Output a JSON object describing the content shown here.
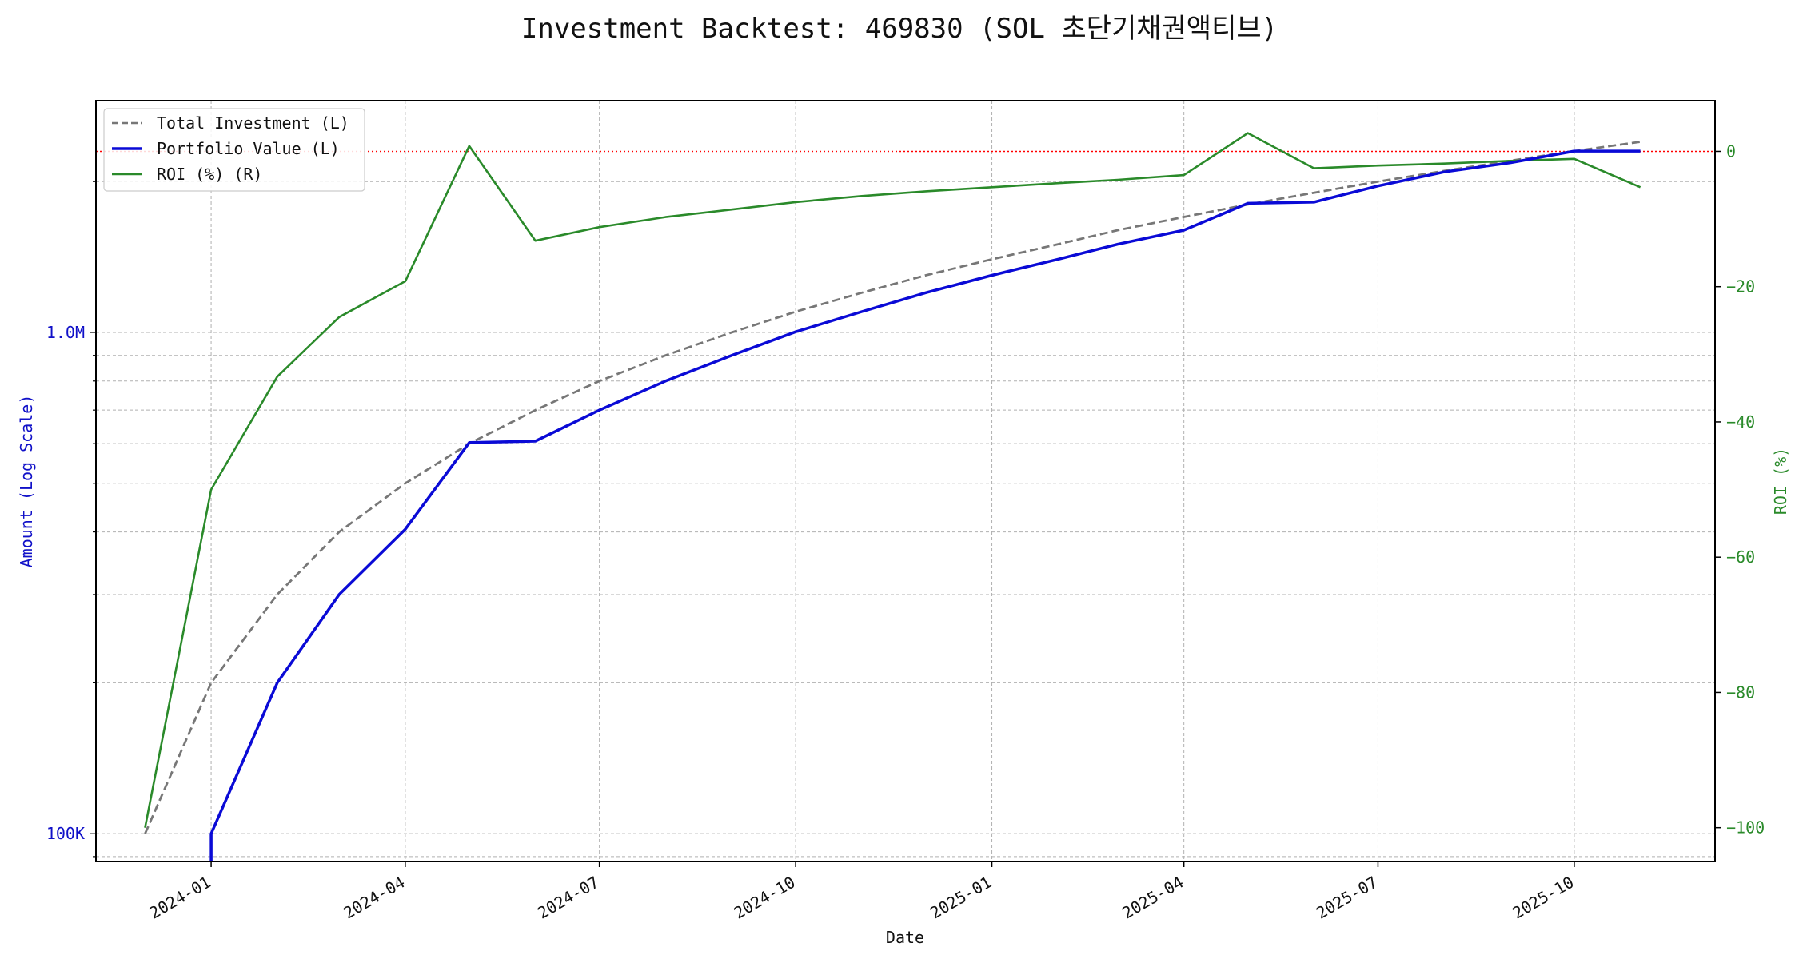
{
  "chart_data": {
    "type": "line",
    "title": "Investment Backtest: 469830 (SOL 초단기채권액티브)",
    "xlabel": "Date",
    "ylabel_left": "Amount (Log Scale)",
    "ylabel_right": "ROI (%)",
    "x_ticks": [
      "2024-01",
      "2024-04",
      "2024-07",
      "2024-10",
      "2025-01",
      "2025-04",
      "2025-07",
      "2025-10"
    ],
    "xlim": [
      "2023-11-08",
      "2025-12-06"
    ],
    "y_left_scale": "log",
    "y_left_ticks": [
      {
        "value": 100000,
        "label": "100K"
      },
      {
        "value": 1000000,
        "label": "1.0M"
      }
    ],
    "y_left_range": [
      88000,
      2900000
    ],
    "y_right_ticks": [
      0,
      -20,
      -40,
      -60,
      -80,
      -100
    ],
    "y_right_range": [
      -105,
      7.5
    ],
    "grid": true,
    "legend_position": "top-left",
    "zero_line": {
      "axis": "right",
      "value": 0,
      "color": "#ff0000",
      "style": "dotted"
    },
    "series": [
      {
        "name": "Total Investment (L)",
        "axis": "left",
        "color": "#777777",
        "style": "dashed",
        "x": [
          "2023-12-01",
          "2024-01-01",
          "2024-02-01",
          "2024-03-01",
          "2024-04-01",
          "2024-05-01",
          "2024-06-01",
          "2024-07-01",
          "2024-08-01",
          "2024-09-01",
          "2024-10-01",
          "2024-11-01",
          "2024-12-01",
          "2025-01-01",
          "2025-02-01",
          "2025-03-01",
          "2025-04-01",
          "2025-05-01",
          "2025-06-01",
          "2025-07-01",
          "2025-08-01",
          "2025-09-01",
          "2025-10-01",
          "2025-11-01"
        ],
        "values": [
          100000,
          200000,
          300000,
          400000,
          500000,
          600000,
          700000,
          800000,
          900000,
          1000000,
          1100000,
          1200000,
          1300000,
          1400000,
          1500000,
          1600000,
          1700000,
          1800000,
          1900000,
          2000000,
          2100000,
          2200000,
          2300000,
          2400000
        ]
      },
      {
        "name": "Portfolio Value (L)",
        "axis": "left",
        "color": "#0a0ad6",
        "style": "solid",
        "x": [
          "2023-12-01",
          "2024-01-01",
          "2024-01-01",
          "2024-02-01",
          "2024-03-01",
          "2024-04-01",
          "2024-05-01",
          "2024-06-01",
          "2024-07-01",
          "2024-08-01",
          "2024-09-01",
          "2024-10-01",
          "2024-11-01",
          "2024-12-01",
          "2025-01-01",
          "2025-02-01",
          "2025-03-01",
          "2025-04-01",
          "2025-05-01",
          "2025-06-01",
          "2025-07-01",
          "2025-08-01",
          "2025-09-01",
          "2025-10-01",
          "2025-11-01"
        ],
        "values": [
          0,
          0,
          100000,
          200000,
          300000,
          405000,
          603000,
          607000,
          700000,
          800000,
          900000,
          1003000,
          1100000,
          1200000,
          1300000,
          1400000,
          1500000,
          1600000,
          1810000,
          1820000,
          1960000,
          2090000,
          2180000,
          2300000,
          2300000
        ]
      },
      {
        "name": "ROI (%) (R)",
        "axis": "right",
        "color": "#2a8a2a",
        "style": "solid",
        "x": [
          "2023-12-01",
          "2024-01-01",
          "2024-02-01",
          "2024-03-01",
          "2024-04-01",
          "2024-05-01",
          "2024-06-01",
          "2024-07-01",
          "2024-08-01",
          "2024-09-01",
          "2024-10-01",
          "2024-11-01",
          "2024-12-01",
          "2025-01-01",
          "2025-02-01",
          "2025-03-01",
          "2025-04-01",
          "2025-05-01",
          "2025-06-01",
          "2025-07-01",
          "2025-08-01",
          "2025-09-01",
          "2025-10-01",
          "2025-11-01"
        ],
        "values": [
          -100,
          -50,
          -33.3,
          -24.5,
          -19.2,
          0.8,
          -13.2,
          -11.2,
          -9.7,
          -8.6,
          -7.5,
          -6.6,
          -5.9,
          -5.3,
          -4.7,
          -4.2,
          -3.5,
          2.7,
          -2.5,
          -2.1,
          -1.8,
          -1.4,
          -1.1,
          -5.3
        ]
      }
    ]
  }
}
